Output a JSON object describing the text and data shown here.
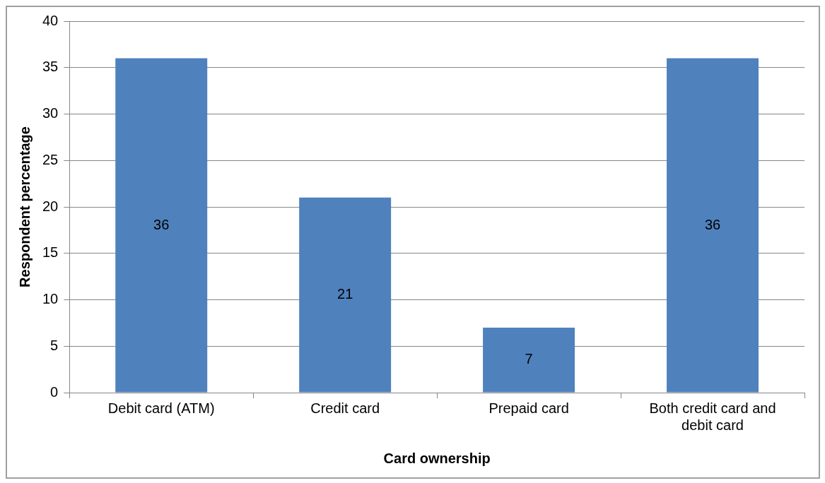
{
  "chart_data": {
    "type": "bar",
    "xlabel": "Card ownership",
    "ylabel": "Respondent percentage",
    "categories": [
      "Debit card (ATM)",
      "Credit card",
      "Prepaid card",
      "Both credit card and debit card"
    ],
    "values": [
      36,
      21,
      7,
      36
    ],
    "color": "#4f81bd",
    "ylim": [
      0,
      40
    ],
    "yticks": [
      0,
      5,
      10,
      15,
      20,
      25,
      30,
      35,
      40
    ],
    "grid": "y",
    "legend": false,
    "data_labels": true
  }
}
